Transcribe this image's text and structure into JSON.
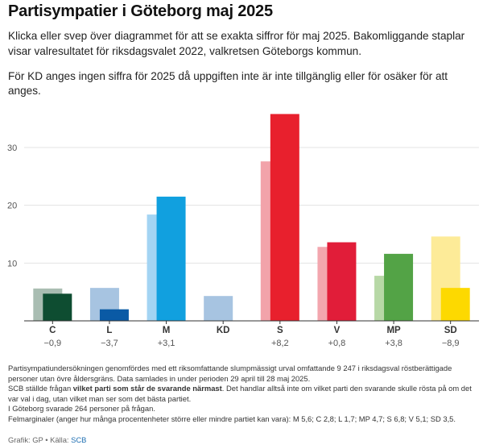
{
  "header": {
    "title": "Partisympatier i Göteborg maj 2025",
    "subtitle": "Klicka eller svep över diagrammet för att se exakta siffror för maj 2025. Bakomliggande staplar visar valresultatet för riksdagsvalet 2022, valkretsen Göteborgs kommun.",
    "note": "För KD anges ingen siffra för 2025 då uppgiften inte är inte tillgänglig eller för osäker för att anges."
  },
  "chart_data": {
    "type": "bar",
    "categories": [
      "C",
      "L",
      "M",
      "KD",
      "S",
      "V",
      "MP",
      "SD"
    ],
    "changes": [
      "−0,9",
      "−3,7",
      "+3,1",
      "",
      "+8,2",
      "+0,8",
      "+3,8",
      "−8,9"
    ],
    "series": [
      {
        "values": [
          5.6,
          5.7,
          18.4,
          4.3,
          27.6,
          12.8,
          7.8,
          14.6
        ]
      },
      {
        "values": [
          4.7,
          2.0,
          21.5,
          null,
          35.8,
          13.6,
          11.6,
          5.7
        ]
      }
    ],
    "colors_2022": [
      "#a9bdb2",
      "#a7c4e1",
      "#a3d4f3",
      "#a7c4e1",
      "#f2a3aa",
      "#f3a6ae",
      "#b7d8a6",
      "#fdeb98"
    ],
    "colors_2025": [
      "#0e4d31",
      "#0a5aa5",
      "#11a0df",
      "#0a5aa5",
      "#e8202d",
      "#e11d39",
      "#53a346",
      "#fdd900"
    ],
    "y_ticks": [
      10,
      20,
      30
    ],
    "ylim": [
      0,
      36
    ],
    "grid": true
  },
  "footer": {
    "lines": [
      "Partisympatiundersökningen genomfördes med ett riksomfattande slumpmässigt urval omfattande 9 247 i riksdagsval röstberättigade personer utan övre åldersgräns. Data samlades in under perioden 29 april till 28 maj 2025."
    ],
    "question_pre": "SCB ställde frågan ",
    "question_bold": "vilket parti som står de svarande närmast",
    "question_post": ". Det handlar alltså inte om vilket parti den svarande skulle rösta på om det var val i dag, utan vilket man ser som det bästa partiet.",
    "respondents": "I Göteborg svarade 264 personer på frågan.",
    "margins": "Felmarginaler (anger hur många procentenheter större eller mindre partiet kan vara): M 5,6; C 2,8; L 1,7; MP 4,7; S 6,8; V 5,1; SD 3,5."
  },
  "credit": {
    "label": "Grafik: GP • Källa: ",
    "source": "SCB"
  }
}
